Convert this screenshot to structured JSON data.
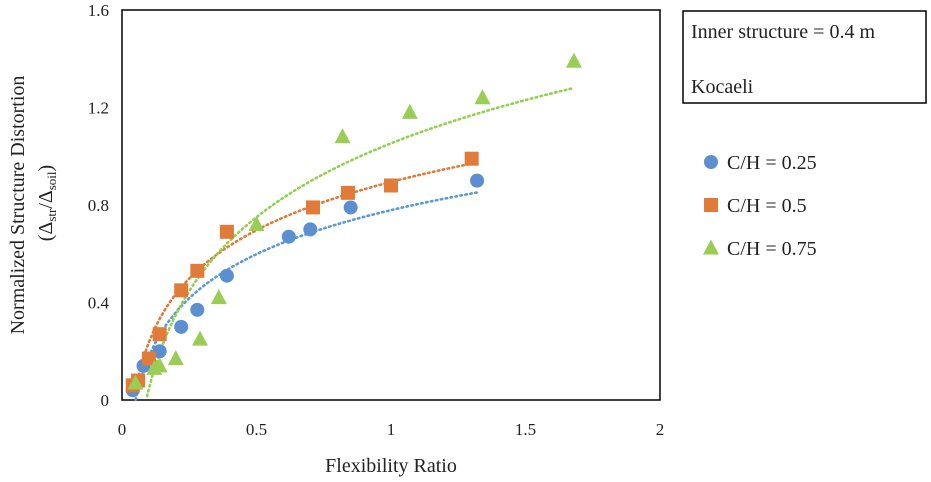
{
  "info_box": {
    "line1": "Inner structure = 0.4 m",
    "line2": "Kocaeli"
  },
  "chart_data": {
    "type": "scatter",
    "title": "",
    "xlabel": "Flexibility Ratio",
    "ylabel": "Normalized Structure Distortion",
    "ylabel_sub": {
      "delta": "Δ",
      "num_sub": "str",
      "slash": "/",
      "den_sub": "soil"
    },
    "xlim": [
      0,
      2
    ],
    "ylim": [
      0,
      1.6
    ],
    "xticks": [
      "0",
      "0.5",
      "1",
      "1.5",
      "2"
    ],
    "yticks": [
      "0",
      "0.4",
      "0.8",
      "1.2",
      "1.6"
    ],
    "grid": false,
    "legend_position": "right",
    "series": [
      {
        "name": "C/H = 0.25",
        "marker": "circle",
        "color": "#5b8fd0",
        "x": [
          0.04,
          0.08,
          0.14,
          0.22,
          0.28,
          0.39,
          0.62,
          0.7,
          0.85,
          1.32
        ],
        "y": [
          0.04,
          0.14,
          0.2,
          0.3,
          0.37,
          0.51,
          0.67,
          0.7,
          0.79,
          0.9
        ],
        "trendline": {
          "type": "log",
          "color": "#5b9bd5",
          "x_range": [
            0.04,
            1.32
          ]
        }
      },
      {
        "name": "C/H = 0.5",
        "marker": "square",
        "color": "#e07b39",
        "x": [
          0.04,
          0.06,
          0.1,
          0.14,
          0.22,
          0.28,
          0.39,
          0.71,
          0.84,
          1.0,
          1.3
        ],
        "y": [
          0.06,
          0.08,
          0.17,
          0.27,
          0.45,
          0.53,
          0.69,
          0.79,
          0.85,
          0.88,
          0.99
        ],
        "trendline": {
          "type": "log",
          "color": "#e07b39",
          "x_range": [
            0.04,
            1.3
          ]
        }
      },
      {
        "name": "C/H = 0.75",
        "marker": "triangle",
        "color": "#9acd54",
        "x": [
          0.05,
          0.12,
          0.14,
          0.2,
          0.29,
          0.36,
          0.5,
          0.82,
          1.07,
          1.34,
          1.68
        ],
        "y": [
          0.07,
          0.13,
          0.14,
          0.17,
          0.25,
          0.42,
          0.72,
          1.08,
          1.18,
          1.24,
          1.39
        ],
        "trendline": {
          "type": "log",
          "color": "#92d050",
          "x_range": [
            0.08,
            1.67
          ]
        }
      }
    ]
  }
}
